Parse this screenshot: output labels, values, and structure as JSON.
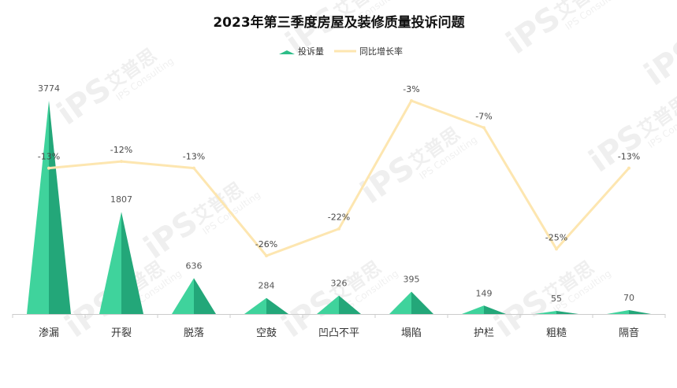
{
  "chart_data": {
    "type": "bar",
    "title": "2023年第三季度房屋及装修质量投诉问题",
    "categories": [
      "渗漏",
      "开裂",
      "脱落",
      "空鼓",
      "凹凸不平",
      "塌陷",
      "护栏",
      "粗糙",
      "隔音"
    ],
    "series": [
      {
        "name": "投诉量",
        "type": "pictorial-triangle",
        "values": [
          3774,
          1807,
          636,
          284,
          326,
          395,
          149,
          55,
          70
        ],
        "labels": [
          "3774",
          "1807",
          "636",
          "284",
          "326",
          "395",
          "149",
          "55",
          "70"
        ],
        "color_light": "#3fd39c",
        "color_dark": "#23a779"
      },
      {
        "name": "同比增长率",
        "type": "line",
        "values": [
          -13,
          -12,
          -13,
          -26,
          -22,
          -3,
          -7,
          -25,
          -13
        ],
        "labels": [
          "-13%",
          "-12%",
          "-13%",
          "-26%",
          "-22%",
          "-3%",
          "-7%",
          "-25%",
          "-13%"
        ],
        "color": "#fde6b0"
      }
    ],
    "ylim_bar": [
      0,
      3774
    ],
    "ylim_line": [
      -26,
      -3
    ],
    "grid": false,
    "legend_position": "top-center"
  },
  "watermark": {
    "brand": "iPS",
    "name_cn": "艾普思",
    "name_en": "IPS Consulting"
  }
}
